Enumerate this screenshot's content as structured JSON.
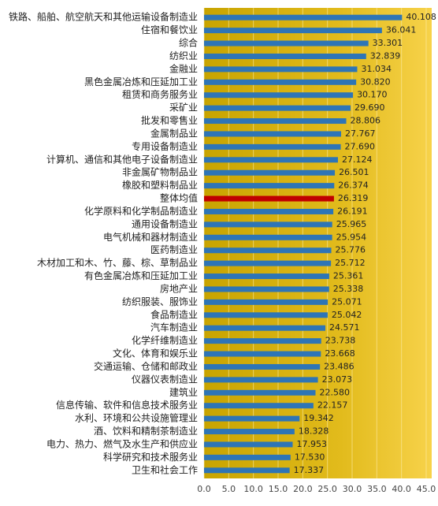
{
  "chart_data": {
    "type": "barh",
    "categories": [
      "铁路、船舶、航空航天和其他运输设备制造业",
      "住宿和餐饮业",
      "综合",
      "纺织业",
      "金融业",
      "黑色金属冶炼和压延加工业",
      "租赁和商务服务业",
      "采矿业",
      "批发和零售业",
      "金属制品业",
      "专用设备制造业",
      "计算机、通信和其他电子设备制造业",
      "非金属矿物制品业",
      "橡胶和塑料制品业",
      "整体均值",
      "化学原料和化学制品制造业",
      "通用设备制造业",
      "电气机械和器材制造业",
      "医药制造业",
      "木材加工和木、竹、藤、棕、草制品业",
      "有色金属冶炼和压延加工业",
      "房地产业",
      "纺织服装、服饰业",
      "食品制造业",
      "汽车制造业",
      "化学纤维制造业",
      "文化、体育和娱乐业",
      "交通运输、仓储和邮政业",
      "仪器仪表制造业",
      "建筑业",
      "信息传输、软件和信息技术服务业",
      "水利、环境和公共设施管理业",
      "酒、饮料和精制茶制造业",
      "电力、热力、燃气及水生产和供应业",
      "科学研究和技术服务业",
      "卫生和社会工作"
    ],
    "values": [
      40.108,
      36.041,
      33.301,
      32.839,
      31.034,
      30.82,
      30.17,
      29.69,
      28.806,
      27.767,
      27.69,
      27.124,
      26.501,
      26.374,
      26.319,
      26.191,
      25.965,
      25.954,
      25.776,
      25.712,
      25.361,
      25.338,
      25.071,
      25.042,
      24.571,
      23.738,
      23.668,
      23.486,
      23.073,
      22.58,
      22.157,
      19.342,
      18.328,
      17.953,
      17.53,
      17.337
    ],
    "value_labels": [
      "40.108",
      "36.041",
      "33.301",
      "32.839",
      "31.034",
      "30.820",
      "30.170",
      "29.690",
      "28.806",
      "27.767",
      "27.690",
      "27.124",
      "26.501",
      "26.374",
      "26.319",
      "26.191",
      "25.965",
      "25.954",
      "25.776",
      "25.712",
      "25.361",
      "25.338",
      "25.071",
      "25.042",
      "24.571",
      "23.738",
      "23.668",
      "23.486",
      "23.073",
      "22.580",
      "22.157",
      "19.342",
      "18.328",
      "17.953",
      "17.530",
      "17.337"
    ],
    "color": "#2e75b6",
    "highlight": {
      "category": "整体均值",
      "color": "#c00000"
    },
    "xlim": [
      0,
      45
    ],
    "xticks": [
      {
        "value": 0,
        "label": "0.0"
      },
      {
        "value": 5,
        "label": "5.0"
      },
      {
        "value": 10,
        "label": "10.0"
      },
      {
        "value": 15,
        "label": "15.0"
      },
      {
        "value": 20,
        "label": "20.0"
      },
      {
        "value": 25,
        "label": "25.0"
      },
      {
        "value": 30,
        "label": "30.0"
      },
      {
        "value": 35,
        "label": "35.0"
      },
      {
        "value": 40,
        "label": "40.0"
      },
      {
        "value": 45,
        "label": "45.0"
      }
    ],
    "grid": true
  }
}
